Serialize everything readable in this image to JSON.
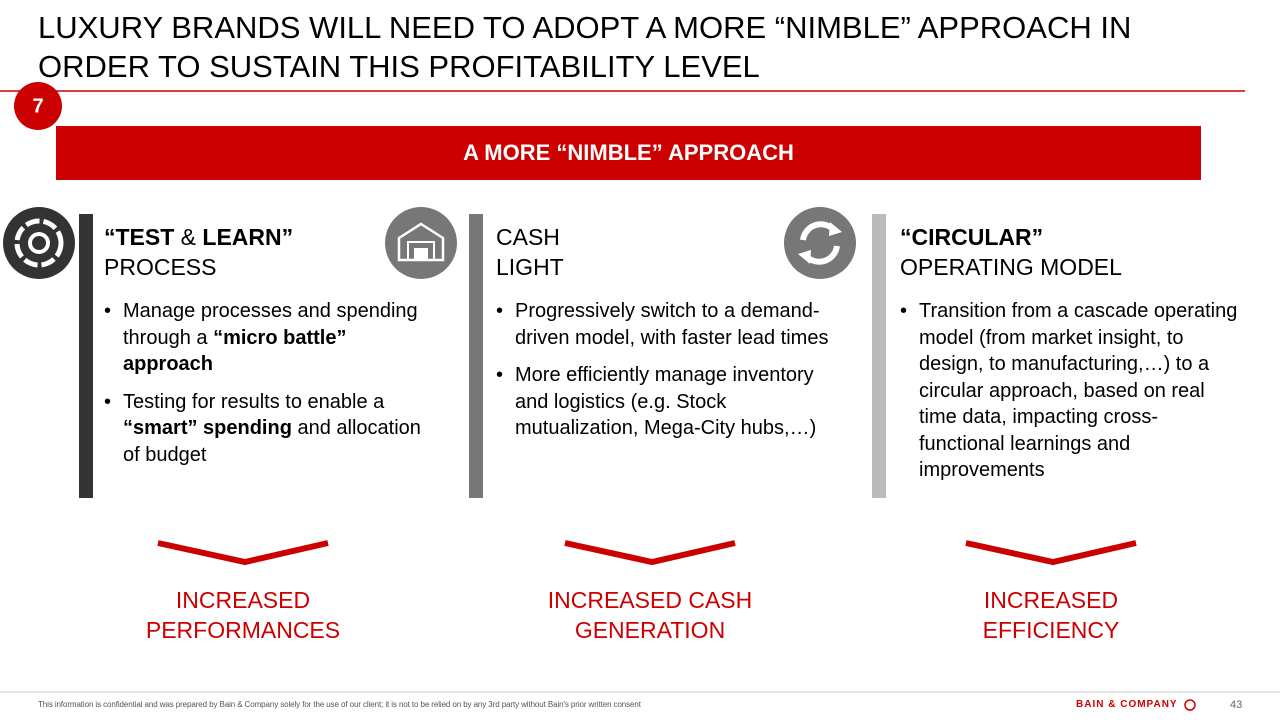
{
  "header": {
    "title": "LUXURY BRANDS WILL NEED TO ADOPT A MORE “NIMBLE” APPROACH IN ORDER TO SUSTAIN THIS PROFITABILITY LEVEL",
    "badge": "7"
  },
  "banner": "A MORE “NIMBLE” APPROACH",
  "columns": [
    {
      "heading": [
        [
          {
            "text": "“TEST",
            "bold": true
          },
          {
            "text": " & ",
            "bold": false
          },
          {
            "text": "LEARN”",
            "bold": true
          }
        ],
        [
          {
            "text": "PROCESS",
            "bold": false
          }
        ]
      ],
      "bullets": [
        [
          {
            "text": "Manage processes and spending through a ",
            "bold": false
          },
          {
            "text": "“micro battle” approach",
            "bold": true
          }
        ],
        [
          {
            "text": "Testing for results to enable a ",
            "bold": false
          },
          {
            "text": "“smart” spending",
            "bold": true
          },
          {
            "text": " and allocation of budget",
            "bold": false
          }
        ]
      ],
      "outcome": [
        "INCREASED",
        "PERFORMANCES"
      ]
    },
    {
      "heading": [
        [
          {
            "text": "CASH",
            "bold": false
          }
        ],
        [
          {
            "text": "LIGHT",
            "bold": false
          }
        ]
      ],
      "bullets": [
        [
          {
            "text": "Progressively switch to a demand-driven model, with faster lead times",
            "bold": false
          }
        ],
        [
          {
            "text": "More efficiently manage inventory and logistics (e.g. Stock mutualization, Mega-City hubs,…)",
            "bold": false
          }
        ]
      ],
      "outcome": [
        "INCREASED CASH",
        "GENERATION"
      ]
    },
    {
      "heading": [
        [
          {
            "text": "“CIRCULAR”",
            "bold": true
          }
        ],
        [
          {
            "text": "OPERATING MODEL",
            "bold": false
          }
        ]
      ],
      "bullets": [
        [
          {
            "text": "Transition from a cascade operating model (from market insight, to design, to manufacturing,…) to a circular approach, based on real time data, impacting cross-functional learnings and improvements",
            "bold": false
          }
        ]
      ],
      "outcome": [
        "INCREASED",
        "EFFICIENCY"
      ]
    }
  ],
  "footer": {
    "note": "This information is confidential and was prepared by Bain & Company solely for the use of our client; it is not to be relied on by any 3rd party without Bain's prior written consent",
    "logo": "BAIN & COMPANY",
    "page": "43"
  }
}
